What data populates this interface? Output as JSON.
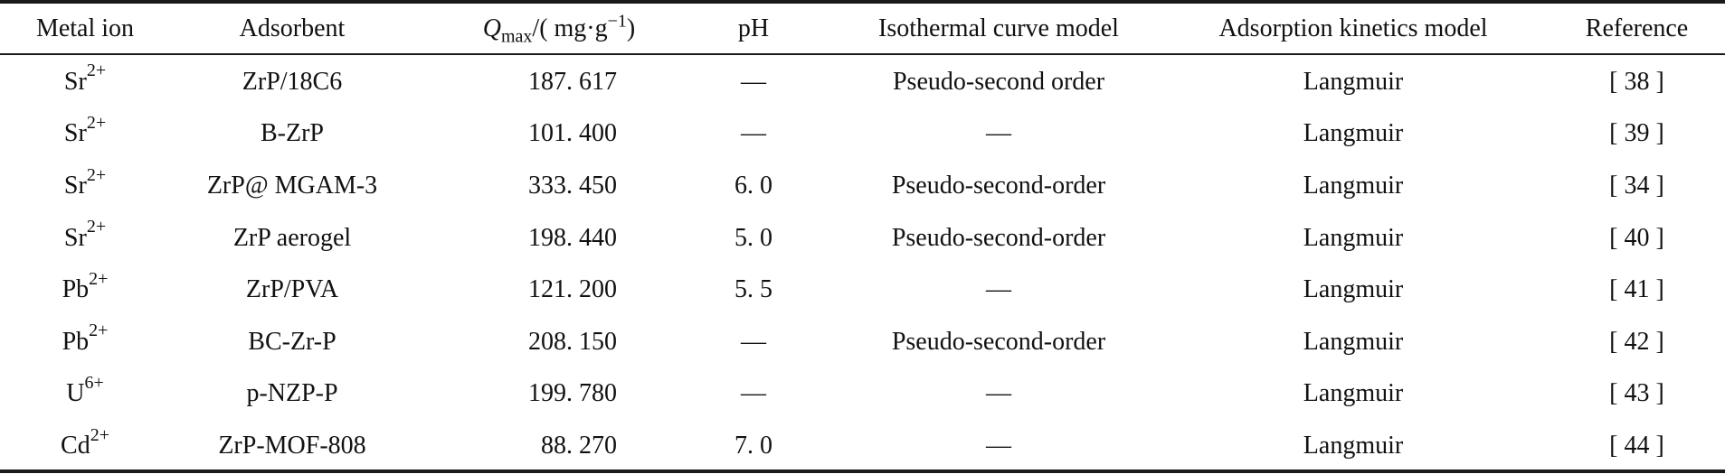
{
  "table": {
    "headers": {
      "metal_ion": "Metal ion",
      "adsorbent": "Adsorbent",
      "qmax_symbol": "Q",
      "qmax_subscript": "max",
      "qmax_unit_open": "/( mg·g",
      "qmax_unit_exp": "−1",
      "qmax_unit_close": ")",
      "ph": "pH",
      "isothermal": "Isothermal curve model",
      "kinetics": "Adsorption kinetics model",
      "reference": "Reference"
    },
    "rows": [
      {
        "ion": "Sr",
        "charge": "2+",
        "adsorbent": "ZrP/18C6",
        "qmax": "187. 617",
        "ph": "—",
        "isothermal": "Pseudo-second order",
        "kinetics": "Langmuir",
        "reference": "[ 38 ]"
      },
      {
        "ion": "Sr",
        "charge": "2+",
        "adsorbent": "B-ZrP",
        "qmax": "101. 400",
        "ph": "—",
        "isothermal": "—",
        "kinetics": "Langmuir",
        "reference": "[ 39 ]"
      },
      {
        "ion": "Sr",
        "charge": "2+",
        "adsorbent": "ZrP@ MGAM-3",
        "qmax": "333. 450",
        "ph": "6. 0",
        "isothermal": "Pseudo-second-order",
        "kinetics": "Langmuir",
        "reference": "[ 34 ]"
      },
      {
        "ion": "Sr",
        "charge": "2+",
        "adsorbent": "ZrP  aerogel",
        "qmax": "198. 440",
        "ph": "5. 0",
        "isothermal": "Pseudo-second-order",
        "kinetics": "Langmuir",
        "reference": "[ 40 ]"
      },
      {
        "ion": "Pb",
        "charge": "2+",
        "adsorbent": "ZrP/PVA",
        "qmax": "121. 200",
        "ph": "5. 5",
        "isothermal": "—",
        "kinetics": "Langmuir",
        "reference": "[ 41 ]"
      },
      {
        "ion": "Pb",
        "charge": "2+",
        "adsorbent": "BC-Zr-P",
        "qmax": "208. 150",
        "ph": "—",
        "isothermal": "Pseudo-second-order",
        "kinetics": "Langmuir",
        "reference": "[ 42 ]"
      },
      {
        "ion": "U",
        "charge": "6+",
        "adsorbent": "p-NZP-P",
        "qmax": "199. 780",
        "ph": "—",
        "isothermal": "—",
        "kinetics": "Langmuir",
        "reference": "[ 43 ]"
      },
      {
        "ion": "Cd",
        "charge": "2+",
        "adsorbent": "ZrP-MOF-808",
        "qmax": "88. 270",
        "ph": "7. 0",
        "isothermal": "—",
        "kinetics": "Langmuir",
        "reference": "[ 44 ]"
      }
    ]
  }
}
